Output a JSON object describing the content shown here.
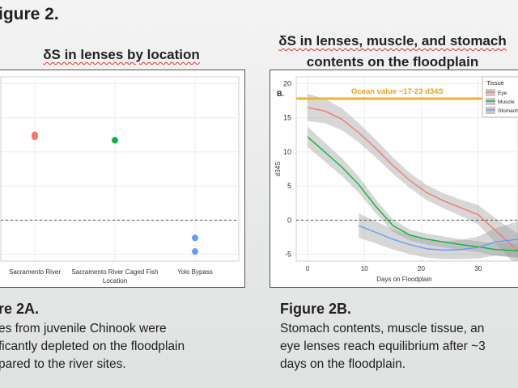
{
  "figure_title": "igure 2.",
  "left": {
    "panel_title": "δS in lenses by location",
    "caption_head": "re 2A.",
    "caption_lines": [
      "es from juvenile Chinook were",
      "ficantly depleted on the floodplain",
      "pared to the river sites."
    ]
  },
  "right": {
    "panel_title_line1": "δS in lenses, muscle, and stomach",
    "panel_title_line2": "contents on the floodplain",
    "caption_head": "Figure 2B.",
    "caption_lines": [
      "Stomach contents, muscle tissue, an",
      "eye lenses reach equilibrium after ~3",
      "days on the floodplain."
    ]
  },
  "chart_data": [
    {
      "type": "scatter",
      "title": "",
      "xlabel": "Location",
      "ylabel": "",
      "categories": [
        "Sacramento River",
        "Sacramento River Caged Fish",
        "Yolo Bypass"
      ],
      "points": [
        {
          "category": "Sacramento River",
          "y": 12.5,
          "color": "#f8766d"
        },
        {
          "category": "Sacramento River",
          "y": 12.2,
          "color": "#f8766d"
        },
        {
          "category": "Sacramento River Caged Fish",
          "y": 11.7,
          "color": "#00ba38"
        },
        {
          "category": "Yolo Bypass",
          "y": -2.6,
          "color": "#619cff"
        },
        {
          "category": "Yolo Bypass",
          "y": -4.6,
          "color": "#619cff"
        }
      ],
      "reference_line": 0,
      "ylim": [
        -6,
        21
      ],
      "grid": true
    },
    {
      "type": "line",
      "panel_label": "B.",
      "title": "",
      "xlabel": "Days on Floodplain",
      "ylabel": "d34S",
      "xlim": [
        -2,
        37
      ],
      "ylim": [
        -6,
        21
      ],
      "x_ticks": [
        0,
        10,
        20,
        30
      ],
      "y_ticks": [
        -5,
        0,
        5,
        10,
        15,
        20
      ],
      "reference_line": 0,
      "ocean_line": {
        "y": 17.8,
        "label": "Ocean value ~17-23 d34S",
        "color": "#f5b324"
      },
      "legend": {
        "title": "Tissue",
        "position": "top-right"
      },
      "grid": true,
      "series": [
        {
          "name": "Eye",
          "color": "#f8766d",
          "x": [
            0,
            3,
            6,
            9,
            12,
            15,
            18,
            21,
            24,
            27,
            30,
            33,
            37
          ],
          "y": [
            16.5,
            16.0,
            14.8,
            12.8,
            10.5,
            8.0,
            5.8,
            4.0,
            2.8,
            1.8,
            0.8,
            -1.5,
            -4.5
          ],
          "band": [
            2.0,
            1.8,
            1.6,
            1.4,
            1.3,
            1.2,
            1.1,
            1.1,
            1.1,
            1.2,
            1.4,
            1.8,
            2.5
          ]
        },
        {
          "name": "Muscle",
          "color": "#00ba38",
          "x": [
            0,
            3,
            6,
            9,
            12,
            15,
            18,
            21,
            24,
            27,
            30,
            33,
            37
          ],
          "y": [
            12.2,
            10.0,
            7.8,
            5.2,
            2.0,
            -0.8,
            -2.2,
            -2.8,
            -3.2,
            -3.6,
            -3.9,
            -4.3,
            -4.5
          ],
          "band": [
            1.5,
            1.4,
            1.3,
            1.2,
            1.0,
            0.9,
            0.8,
            0.8,
            0.8,
            0.8,
            0.8,
            0.9,
            1.1
          ]
        },
        {
          "name": "Stomach",
          "color": "#619cff",
          "x": [
            9,
            12,
            15,
            18,
            21,
            24,
            27,
            30,
            33,
            37
          ],
          "y": [
            -0.8,
            -1.8,
            -2.8,
            -3.6,
            -4.2,
            -4.4,
            -4.3,
            -4.0,
            -3.2,
            -2.8
          ],
          "band": [
            1.8,
            1.6,
            1.5,
            1.4,
            1.3,
            1.3,
            1.4,
            1.6,
            2.0,
            2.6
          ]
        }
      ]
    }
  ]
}
